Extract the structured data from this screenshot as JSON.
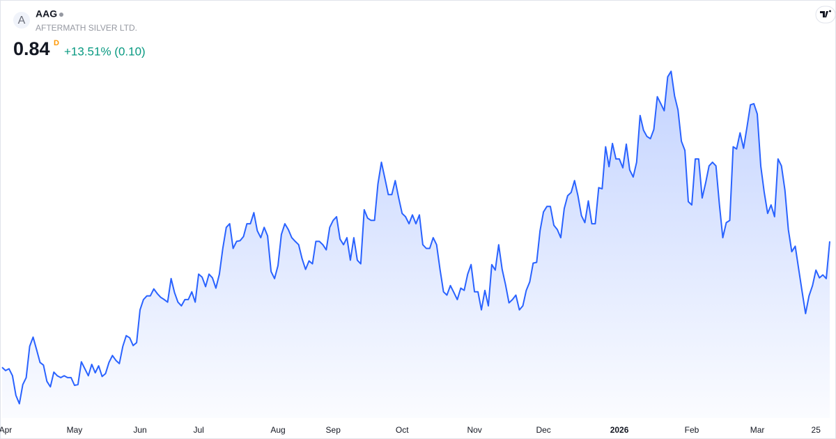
{
  "header": {
    "logo_letter": "A",
    "symbol": "AAG",
    "name": "AFTERMATH SILVER LTD.",
    "price": 0.84,
    "interval": "D",
    "change": "+13.51% (0.10)"
  },
  "chart_data": {
    "type": "area",
    "color": "#2962ff",
    "values": [
      0.498,
      0.489,
      0.494,
      0.475,
      0.422,
      0.399,
      0.451,
      0.47,
      0.555,
      0.58,
      0.546,
      0.511,
      0.504,
      0.46,
      0.445,
      0.485,
      0.475,
      0.47,
      0.475,
      0.47,
      0.47,
      0.449,
      0.451,
      0.513,
      0.494,
      0.475,
      0.506,
      0.483,
      0.502,
      0.473,
      0.481,
      0.511,
      0.53,
      0.517,
      0.508,
      0.555,
      0.584,
      0.578,
      0.557,
      0.565,
      0.654,
      0.682,
      0.692,
      0.692,
      0.711,
      0.698,
      0.688,
      0.682,
      0.675,
      0.739,
      0.701,
      0.675,
      0.665,
      0.682,
      0.682,
      0.703,
      0.675,
      0.751,
      0.743,
      0.717,
      0.751,
      0.741,
      0.713,
      0.751,
      0.821,
      0.878,
      0.888,
      0.821,
      0.84,
      0.842,
      0.853,
      0.888,
      0.888,
      0.918,
      0.869,
      0.85,
      0.878,
      0.855,
      0.758,
      0.739,
      0.774,
      0.859,
      0.888,
      0.872,
      0.85,
      0.84,
      0.831,
      0.793,
      0.764,
      0.787,
      0.779,
      0.84,
      0.84,
      0.831,
      0.817,
      0.878,
      0.897,
      0.907,
      0.846,
      0.831,
      0.85,
      0.789,
      0.85,
      0.789,
      0.779,
      0.926,
      0.903,
      0.897,
      0.897,
      0.996,
      1.055,
      1.011,
      0.967,
      0.967,
      1.005,
      0.958,
      0.916,
      0.907,
      0.888,
      0.912,
      0.888,
      0.912,
      0.831,
      0.821,
      0.821,
      0.85,
      0.831,
      0.764,
      0.703,
      0.694,
      0.72,
      0.701,
      0.682,
      0.713,
      0.707,
      0.751,
      0.777,
      0.703,
      0.703,
      0.654,
      0.707,
      0.665,
      0.777,
      0.762,
      0.831,
      0.764,
      0.722,
      0.673,
      0.682,
      0.694,
      0.654,
      0.665,
      0.707,
      0.73,
      0.781,
      0.783,
      0.869,
      0.92,
      0.935,
      0.935,
      0.884,
      0.872,
      0.85,
      0.929,
      0.964,
      0.973,
      1.005,
      0.964,
      0.91,
      0.891,
      0.95,
      0.888,
      0.888,
      0.986,
      0.983,
      1.097,
      1.043,
      1.106,
      1.064,
      1.064,
      1.04,
      1.104,
      1.034,
      1.015,
      1.055,
      1.182,
      1.142,
      1.125,
      1.119,
      1.144,
      1.233,
      1.214,
      1.195,
      1.287,
      1.302,
      1.235,
      1.197,
      1.112,
      1.087,
      0.948,
      0.939,
      1.064,
      1.064,
      0.958,
      0.998,
      1.045,
      1.055,
      1.045,
      0.941,
      0.85,
      0.891,
      0.897,
      1.097,
      1.091,
      1.135,
      1.093,
      1.15,
      1.211,
      1.214,
      1.186,
      1.045,
      0.973,
      0.916,
      0.939,
      0.907,
      1.064,
      1.045,
      0.979,
      0.872,
      0.812,
      0.827,
      0.764,
      0.703,
      0.644,
      0.692,
      0.72,
      0.762,
      0.741,
      0.749,
      0.739,
      0.84
    ],
    "ylim": [
      0.36,
      1.42
    ],
    "xticks": [
      {
        "value": 1,
        "label": "Apr"
      },
      {
        "value": 21,
        "label": "May"
      },
      {
        "value": 40,
        "label": "Jun"
      },
      {
        "value": 57,
        "label": "Jul"
      },
      {
        "value": 80,
        "label": "Aug"
      },
      {
        "value": 96,
        "label": "Sep"
      },
      {
        "value": 116,
        "label": "Oct"
      },
      {
        "value": 137,
        "label": "Nov"
      },
      {
        "value": 157,
        "label": "Dec"
      },
      {
        "value": 179,
        "label": "2026"
      },
      {
        "value": 200,
        "label": "Feb"
      },
      {
        "value": 219,
        "label": "Mar"
      },
      {
        "value": 236,
        "label": "25"
      }
    ],
    "grid": false
  }
}
